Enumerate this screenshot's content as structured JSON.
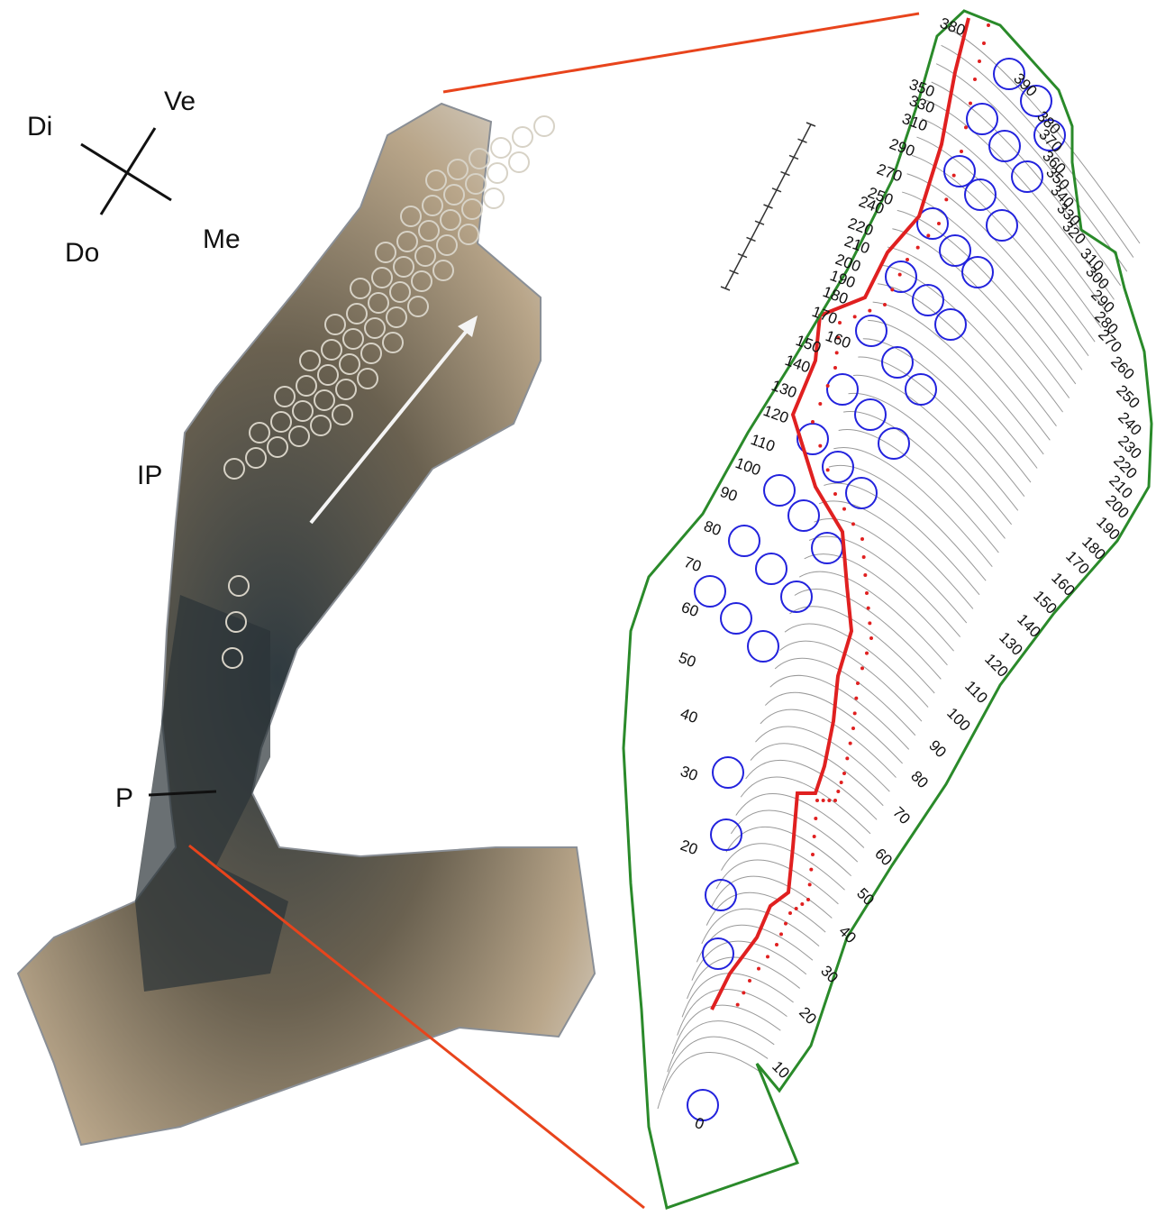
{
  "orientation": {
    "labels": [
      "Di",
      "Ve",
      "Do",
      "Me"
    ]
  },
  "specimen_labels": [
    "IP",
    "P"
  ],
  "contours": {
    "left_labels": [
      "380",
      "350",
      "330",
      "310",
      "290",
      "270",
      "250",
      "240",
      "220",
      "210",
      "200",
      "190",
      "180",
      "170",
      "160",
      "150",
      "140",
      "130",
      "120",
      "110",
      "100",
      "90",
      "80",
      "70",
      "60",
      "50",
      "40",
      "30",
      "20",
      "0"
    ],
    "right_labels": [
      "390",
      "380",
      "370",
      "360",
      "350",
      "340",
      "330",
      "320",
      "310",
      "300",
      "290",
      "280",
      "270",
      "260",
      "250",
      "240",
      "230",
      "220",
      "210",
      "200",
      "190",
      "180",
      "170",
      "160",
      "150",
      "140",
      "130",
      "120",
      "110",
      "100",
      "90",
      "80",
      "70",
      "60",
      "50",
      "40",
      "30",
      "20",
      "10"
    ]
  }
}
